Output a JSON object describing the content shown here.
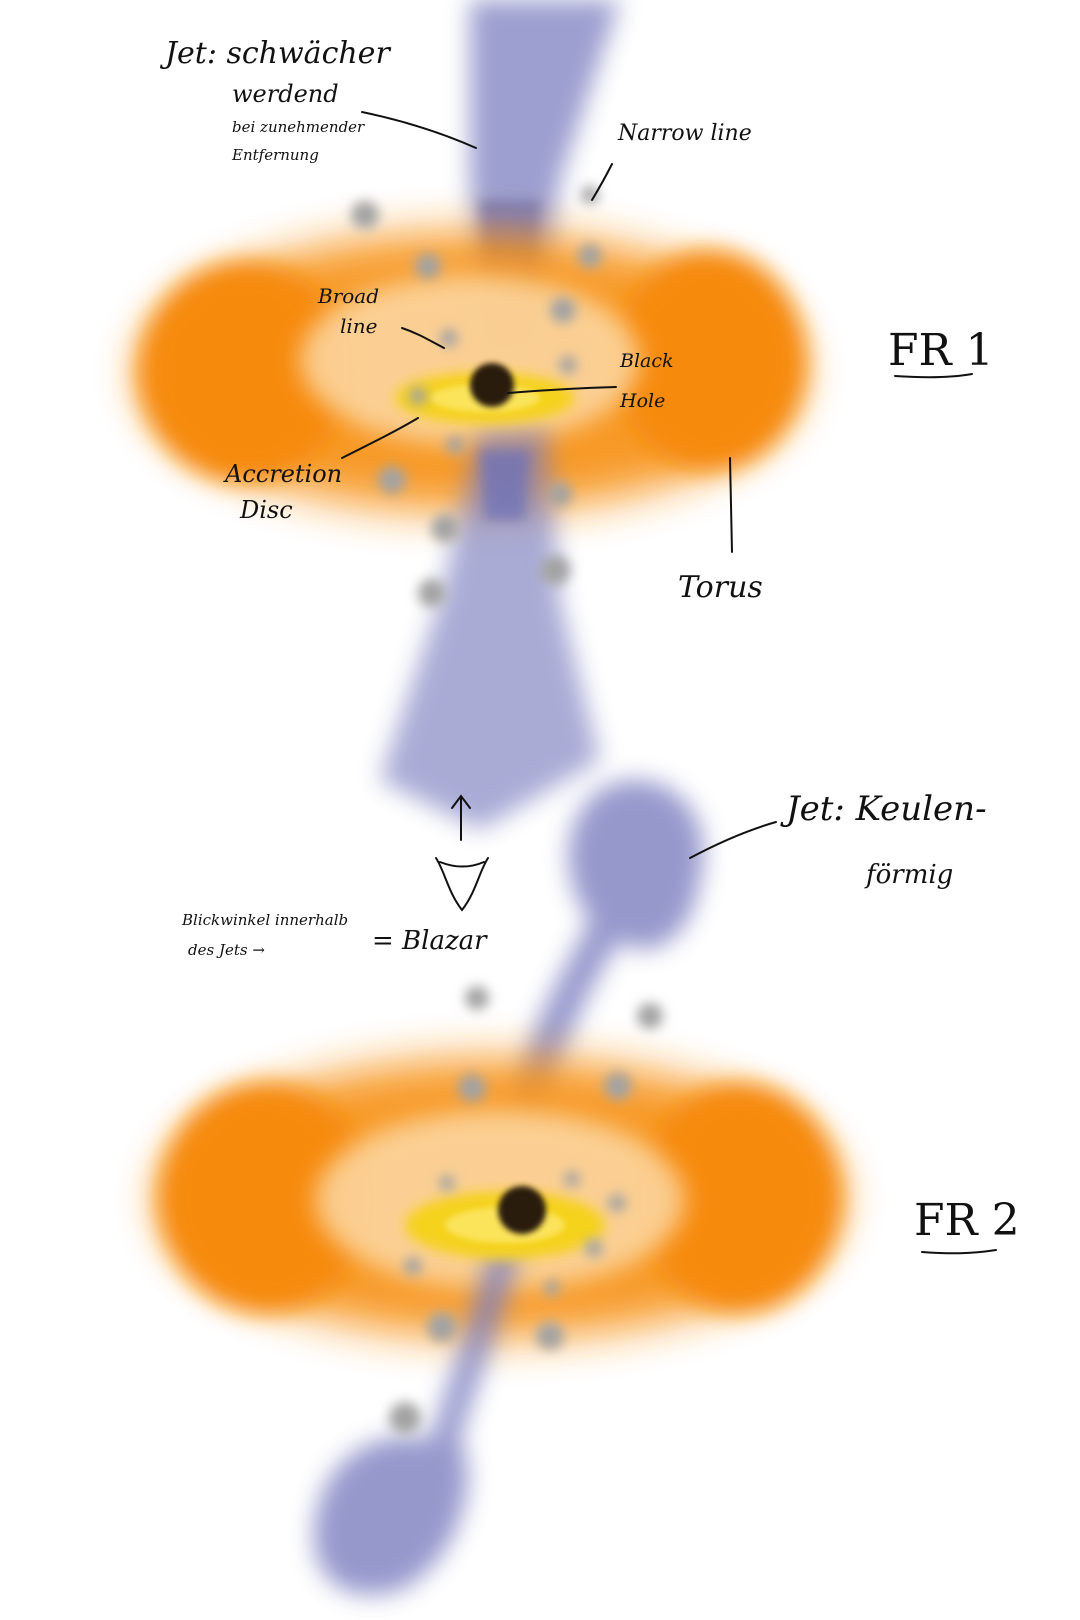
{
  "labels": {
    "jet_fr1_line1": "Jet: schwächer",
    "jet_fr1_line2": "werdend",
    "jet_fr1_line3": "bei zunehmender",
    "jet_fr1_line4": "Entfernung",
    "narrow_line": "Narrow line",
    "broad_line_1": "Broad",
    "broad_line_2": "line",
    "black_hole_1": "Black",
    "black_hole_2": "Hole",
    "accretion_1": "Accretion",
    "accretion_2": "Disc",
    "torus": "Torus",
    "fr1": "FR 1",
    "fr2": "FR 2",
    "jet_fr2_line1": "Jet: Keulen-",
    "jet_fr2_line2": "förmig",
    "viewing_1": "Blickwinkel innerhalb",
    "viewing_2": "des Jets →",
    "blazar": "= Blazar"
  },
  "colors": {
    "torus": "#f7941d",
    "torus_light": "#fcd9a6",
    "accretion_disc": "#f5d21e",
    "jet": "#7b7fc0",
    "clouds": "#a3a3a3",
    "black_hole": "#2a1a10",
    "ink": "#111111"
  },
  "icons": [
    "eye-icon",
    "arrow-up-icon"
  ]
}
